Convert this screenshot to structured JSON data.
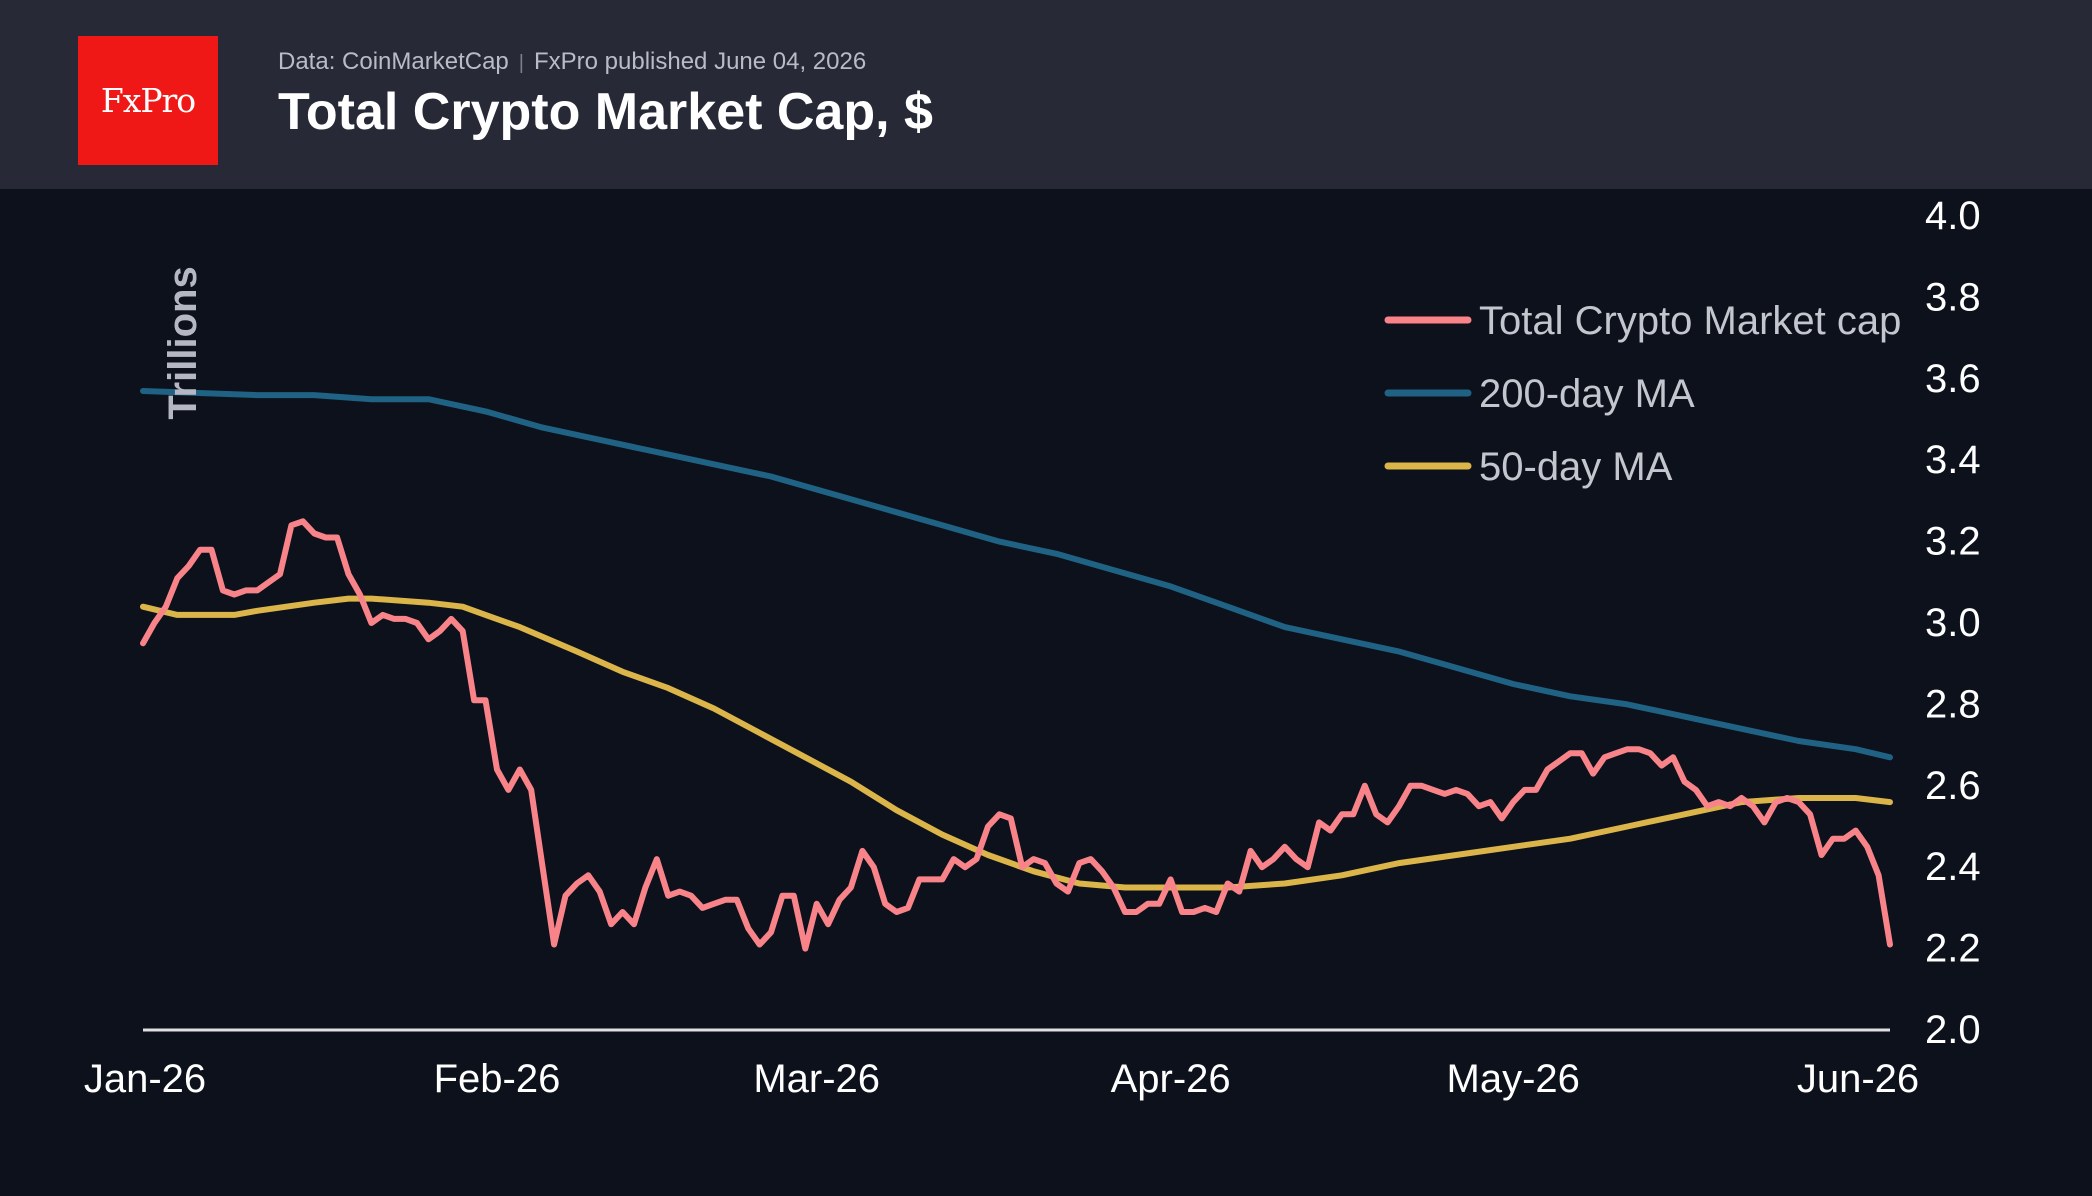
{
  "header": {
    "logo_text": "FxPro",
    "source": "Data: CoinMarketCap",
    "published": "FxPro published June 04, 2026",
    "title": "Total Crypto Market Cap, $"
  },
  "chart_data": {
    "type": "line",
    "ylabel": "Trillions",
    "ylim": [
      2.0,
      4.0
    ],
    "y_ticks": [
      2.0,
      2.2,
      2.4,
      2.6,
      2.8,
      3.0,
      3.2,
      3.4,
      3.6,
      3.8,
      4.0
    ],
    "x_ticks": [
      {
        "label": "Jan-26",
        "day": 0
      },
      {
        "label": "Feb-26",
        "day": 31
      },
      {
        "label": "Mar-26",
        "day": 59
      },
      {
        "label": "Apr-26",
        "day": 90
      },
      {
        "label": "May-26",
        "day": 120
      },
      {
        "label": "Jun-26",
        "day": 151
      }
    ],
    "x_range": [
      0,
      153
    ],
    "legend_position": "top-right",
    "series": [
      {
        "name": "Total Crypto Market cap",
        "color": "#f8848a",
        "points": [
          [
            0,
            2.95
          ],
          [
            1,
            3.0
          ],
          [
            2,
            3.04
          ],
          [
            3,
            3.11
          ],
          [
            4,
            3.14
          ],
          [
            5,
            3.18
          ],
          [
            6,
            3.18
          ],
          [
            7,
            3.08
          ],
          [
            8,
            3.07
          ],
          [
            9,
            3.08
          ],
          [
            10,
            3.08
          ],
          [
            11,
            3.1
          ],
          [
            12,
            3.12
          ],
          [
            13,
            3.24
          ],
          [
            14,
            3.25
          ],
          [
            15,
            3.22
          ],
          [
            16,
            3.21
          ],
          [
            17,
            3.21
          ],
          [
            18,
            3.12
          ],
          [
            19,
            3.07
          ],
          [
            20,
            3.0
          ],
          [
            21,
            3.02
          ],
          [
            22,
            3.01
          ],
          [
            23,
            3.01
          ],
          [
            24,
            3.0
          ],
          [
            25,
            2.96
          ],
          [
            26,
            2.98
          ],
          [
            27,
            3.01
          ],
          [
            28,
            2.98
          ],
          [
            29,
            2.81
          ],
          [
            30,
            2.81
          ],
          [
            31,
            2.64
          ],
          [
            32,
            2.59
          ],
          [
            33,
            2.64
          ],
          [
            34,
            2.59
          ],
          [
            35,
            2.4
          ],
          [
            36,
            2.21
          ],
          [
            37,
            2.33
          ],
          [
            38,
            2.36
          ],
          [
            39,
            2.38
          ],
          [
            40,
            2.34
          ],
          [
            41,
            2.26
          ],
          [
            42,
            2.29
          ],
          [
            43,
            2.26
          ],
          [
            44,
            2.35
          ],
          [
            45,
            2.42
          ],
          [
            46,
            2.33
          ],
          [
            47,
            2.34
          ],
          [
            48,
            2.33
          ],
          [
            49,
            2.3
          ],
          [
            50,
            2.31
          ],
          [
            51,
            2.32
          ],
          [
            52,
            2.32
          ],
          [
            53,
            2.25
          ],
          [
            54,
            2.21
          ],
          [
            55,
            2.24
          ],
          [
            56,
            2.33
          ],
          [
            57,
            2.33
          ],
          [
            58,
            2.2
          ],
          [
            59,
            2.31
          ],
          [
            60,
            2.26
          ],
          [
            61,
            2.32
          ],
          [
            62,
            2.35
          ],
          [
            63,
            2.44
          ],
          [
            64,
            2.4
          ],
          [
            65,
            2.31
          ],
          [
            66,
            2.29
          ],
          [
            67,
            2.3
          ],
          [
            68,
            2.37
          ],
          [
            69,
            2.37
          ],
          [
            70,
            2.37
          ],
          [
            71,
            2.42
          ],
          [
            72,
            2.4
          ],
          [
            73,
            2.42
          ],
          [
            74,
            2.5
          ],
          [
            75,
            2.53
          ],
          [
            76,
            2.52
          ],
          [
            77,
            2.4
          ],
          [
            78,
            2.42
          ],
          [
            79,
            2.41
          ],
          [
            80,
            2.36
          ],
          [
            81,
            2.34
          ],
          [
            82,
            2.41
          ],
          [
            83,
            2.42
          ],
          [
            84,
            2.39
          ],
          [
            85,
            2.35
          ],
          [
            86,
            2.29
          ],
          [
            87,
            2.29
          ],
          [
            88,
            2.31
          ],
          [
            89,
            2.31
          ],
          [
            90,
            2.37
          ],
          [
            91,
            2.29
          ],
          [
            92,
            2.29
          ],
          [
            93,
            2.3
          ],
          [
            94,
            2.29
          ],
          [
            95,
            2.36
          ],
          [
            96,
            2.34
          ],
          [
            97,
            2.44
          ],
          [
            98,
            2.4
          ],
          [
            99,
            2.42
          ],
          [
            100,
            2.45
          ],
          [
            101,
            2.42
          ],
          [
            102,
            2.4
          ],
          [
            103,
            2.51
          ],
          [
            104,
            2.49
          ],
          [
            105,
            2.53
          ],
          [
            106,
            2.53
          ],
          [
            107,
            2.6
          ],
          [
            108,
            2.53
          ],
          [
            109,
            2.51
          ],
          [
            110,
            2.55
          ],
          [
            111,
            2.6
          ],
          [
            112,
            2.6
          ],
          [
            113,
            2.59
          ],
          [
            114,
            2.58
          ],
          [
            115,
            2.59
          ],
          [
            116,
            2.58
          ],
          [
            117,
            2.55
          ],
          [
            118,
            2.56
          ],
          [
            119,
            2.52
          ],
          [
            120,
            2.56
          ],
          [
            121,
            2.59
          ],
          [
            122,
            2.59
          ],
          [
            123,
            2.64
          ],
          [
            124,
            2.66
          ],
          [
            125,
            2.68
          ],
          [
            126,
            2.68
          ],
          [
            127,
            2.63
          ],
          [
            128,
            2.67
          ],
          [
            129,
            2.68
          ],
          [
            130,
            2.69
          ],
          [
            131,
            2.69
          ],
          [
            132,
            2.68
          ],
          [
            133,
            2.65
          ],
          [
            134,
            2.67
          ],
          [
            135,
            2.61
          ],
          [
            136,
            2.59
          ],
          [
            137,
            2.55
          ],
          [
            138,
            2.56
          ],
          [
            139,
            2.55
          ],
          [
            140,
            2.57
          ],
          [
            141,
            2.55
          ],
          [
            142,
            2.51
          ],
          [
            143,
            2.56
          ],
          [
            144,
            2.57
          ],
          [
            145,
            2.56
          ],
          [
            146,
            2.53
          ],
          [
            147,
            2.43
          ],
          [
            148,
            2.47
          ],
          [
            149,
            2.47
          ],
          [
            150,
            2.49
          ],
          [
            151,
            2.45
          ],
          [
            152,
            2.38
          ],
          [
            153,
            2.21
          ]
        ]
      },
      {
        "name": "200-day MA",
        "color": "#1f6283",
        "points": [
          [
            0,
            3.57
          ],
          [
            10,
            3.56
          ],
          [
            15,
            3.56
          ],
          [
            20,
            3.55
          ],
          [
            25,
            3.55
          ],
          [
            30,
            3.52
          ],
          [
            35,
            3.48
          ],
          [
            40,
            3.45
          ],
          [
            45,
            3.42
          ],
          [
            50,
            3.39
          ],
          [
            55,
            3.36
          ],
          [
            60,
            3.32
          ],
          [
            65,
            3.28
          ],
          [
            70,
            3.24
          ],
          [
            75,
            3.2
          ],
          [
            80,
            3.17
          ],
          [
            85,
            3.13
          ],
          [
            90,
            3.09
          ],
          [
            95,
            3.04
          ],
          [
            100,
            2.99
          ],
          [
            105,
            2.96
          ],
          [
            110,
            2.93
          ],
          [
            115,
            2.89
          ],
          [
            120,
            2.85
          ],
          [
            125,
            2.82
          ],
          [
            130,
            2.8
          ],
          [
            135,
            2.77
          ],
          [
            140,
            2.74
          ],
          [
            145,
            2.71
          ],
          [
            150,
            2.69
          ],
          [
            153,
            2.67
          ]
        ]
      },
      {
        "name": "50-day MA",
        "color": "#dbb44a",
        "points": [
          [
            0,
            3.04
          ],
          [
            3,
            3.02
          ],
          [
            6,
            3.02
          ],
          [
            8,
            3.02
          ],
          [
            10,
            3.03
          ],
          [
            15,
            3.05
          ],
          [
            18,
            3.06
          ],
          [
            20,
            3.06
          ],
          [
            25,
            3.05
          ],
          [
            28,
            3.04
          ],
          [
            30,
            3.02
          ],
          [
            33,
            2.99
          ],
          [
            38,
            2.93
          ],
          [
            42,
            2.88
          ],
          [
            46,
            2.84
          ],
          [
            50,
            2.79
          ],
          [
            54,
            2.73
          ],
          [
            58,
            2.67
          ],
          [
            62,
            2.61
          ],
          [
            66,
            2.54
          ],
          [
            70,
            2.48
          ],
          [
            74,
            2.43
          ],
          [
            78,
            2.39
          ],
          [
            82,
            2.36
          ],
          [
            86,
            2.35
          ],
          [
            90,
            2.35
          ],
          [
            95,
            2.35
          ],
          [
            100,
            2.36
          ],
          [
            105,
            2.38
          ],
          [
            110,
            2.41
          ],
          [
            115,
            2.43
          ],
          [
            120,
            2.45
          ],
          [
            125,
            2.47
          ],
          [
            130,
            2.5
          ],
          [
            135,
            2.53
          ],
          [
            140,
            2.56
          ],
          [
            145,
            2.57
          ],
          [
            150,
            2.57
          ],
          [
            153,
            2.56
          ]
        ]
      }
    ]
  }
}
